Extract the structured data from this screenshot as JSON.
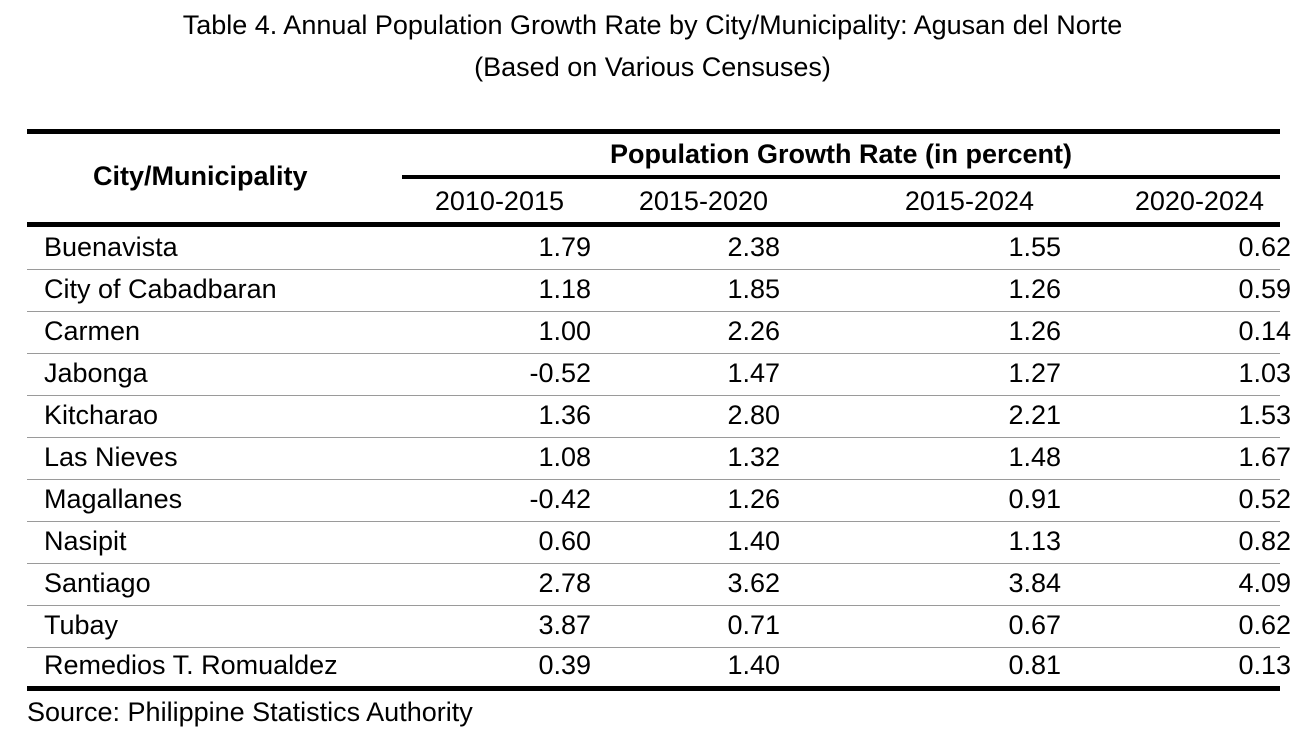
{
  "title_line1": "Table 4. Annual Population Growth Rate by City/Municipality: Agusan del Norte",
  "title_line2": "(Based on Various Censuses)",
  "header": {
    "city": "City/Municipality",
    "group": "Population Growth Rate (in percent)",
    "periods": [
      "2010-2015",
      "2015-2020",
      "2015-2024",
      "2020-2024"
    ]
  },
  "rows": [
    {
      "name": "Buenavista",
      "values": [
        "1.79",
        "2.38",
        "1.55",
        "0.62"
      ]
    },
    {
      "name": "City of Cabadbaran",
      "values": [
        "1.18",
        "1.85",
        "1.26",
        "0.59"
      ]
    },
    {
      "name": "Carmen",
      "values": [
        "1.00",
        "2.26",
        "1.26",
        "0.14"
      ]
    },
    {
      "name": "Jabonga",
      "values": [
        "-0.52",
        "1.47",
        "1.27",
        "1.03"
      ]
    },
    {
      "name": "Kitcharao",
      "values": [
        "1.36",
        "2.80",
        "2.21",
        "1.53"
      ]
    },
    {
      "name": "Las Nieves",
      "values": [
        "1.08",
        "1.32",
        "1.48",
        "1.67"
      ]
    },
    {
      "name": "Magallanes",
      "values": [
        "-0.42",
        "1.26",
        "0.91",
        "0.52"
      ]
    },
    {
      "name": "Nasipit",
      "values": [
        "0.60",
        "1.40",
        "1.13",
        "0.82"
      ]
    },
    {
      "name": "Santiago",
      "values": [
        "2.78",
        "3.62",
        "3.84",
        "4.09"
      ]
    },
    {
      "name": "Tubay",
      "values": [
        "3.87",
        "0.71",
        "0.67",
        "0.62"
      ]
    },
    {
      "name": "Remedios T. Romualdez",
      "values": [
        "0.39",
        "1.40",
        "0.81",
        "0.13"
      ]
    }
  ],
  "source": "Source: Philippine Statistics Authority"
}
